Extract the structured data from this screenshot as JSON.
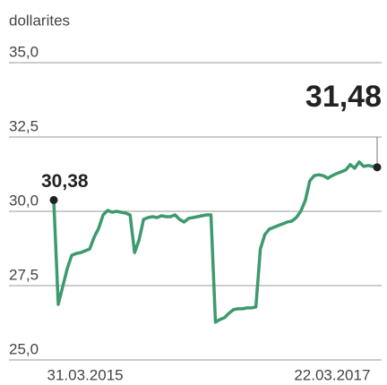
{
  "chart_data": {
    "type": "line",
    "y_label": "dollarites",
    "annotations": [
      "30,38",
      "31,48"
    ],
    "categories": [
      null,
      null,
      null,
      null,
      null,
      null,
      null,
      "31.03.2015",
      null,
      null,
      null,
      null,
      null,
      null,
      null,
      null,
      null,
      null,
      null,
      null,
      null,
      null,
      null,
      null,
      null,
      null,
      null,
      null,
      null,
      null,
      null,
      null,
      null,
      null,
      null,
      null,
      null,
      null,
      null,
      null,
      null,
      null,
      null,
      null,
      null,
      null,
      null,
      null,
      null,
      null,
      null,
      null,
      null,
      null,
      null,
      null,
      null,
      null,
      null,
      null,
      null,
      null,
      "22.03.2017",
      null,
      null,
      null,
      null,
      null,
      null,
      null,
      null,
      null,
      null
    ],
    "series": [
      {
        "color": "#3d9a6c",
        "values": [
          30.38,
          26.87,
          27.47,
          28.07,
          28.52,
          28.58,
          28.61,
          28.67,
          28.73,
          29.13,
          29.43,
          29.88,
          30.03,
          29.97,
          30.0,
          29.97,
          29.94,
          29.88,
          28.61,
          29.04,
          29.73,
          29.79,
          29.82,
          29.79,
          29.85,
          29.82,
          29.82,
          29.88,
          29.73,
          29.64,
          29.76,
          29.79,
          29.82,
          29.85,
          29.88,
          29.88,
          26.27,
          26.36,
          26.42,
          26.57,
          26.69,
          26.72,
          26.72,
          26.75,
          26.75,
          26.78,
          28.73,
          29.22,
          29.4,
          29.46,
          29.52,
          29.58,
          29.64,
          29.67,
          29.79,
          30.0,
          30.36,
          31.02,
          31.2,
          31.23,
          31.2,
          31.11,
          31.2,
          31.27,
          31.33,
          31.39,
          31.57,
          31.45,
          31.66,
          31.51,
          31.54,
          31.51,
          31.48
        ]
      }
    ],
    "ylim": [
      25,
      35
    ],
    "yticks": [
      {
        "value": 25,
        "label": "25,0"
      },
      {
        "value": 27.5,
        "label": "27,5"
      },
      {
        "value": 30,
        "label": "30,0"
      },
      {
        "value": 32.5,
        "label": "32,5"
      },
      {
        "value": 35,
        "label": "35,0"
      }
    ],
    "grid": true
  }
}
